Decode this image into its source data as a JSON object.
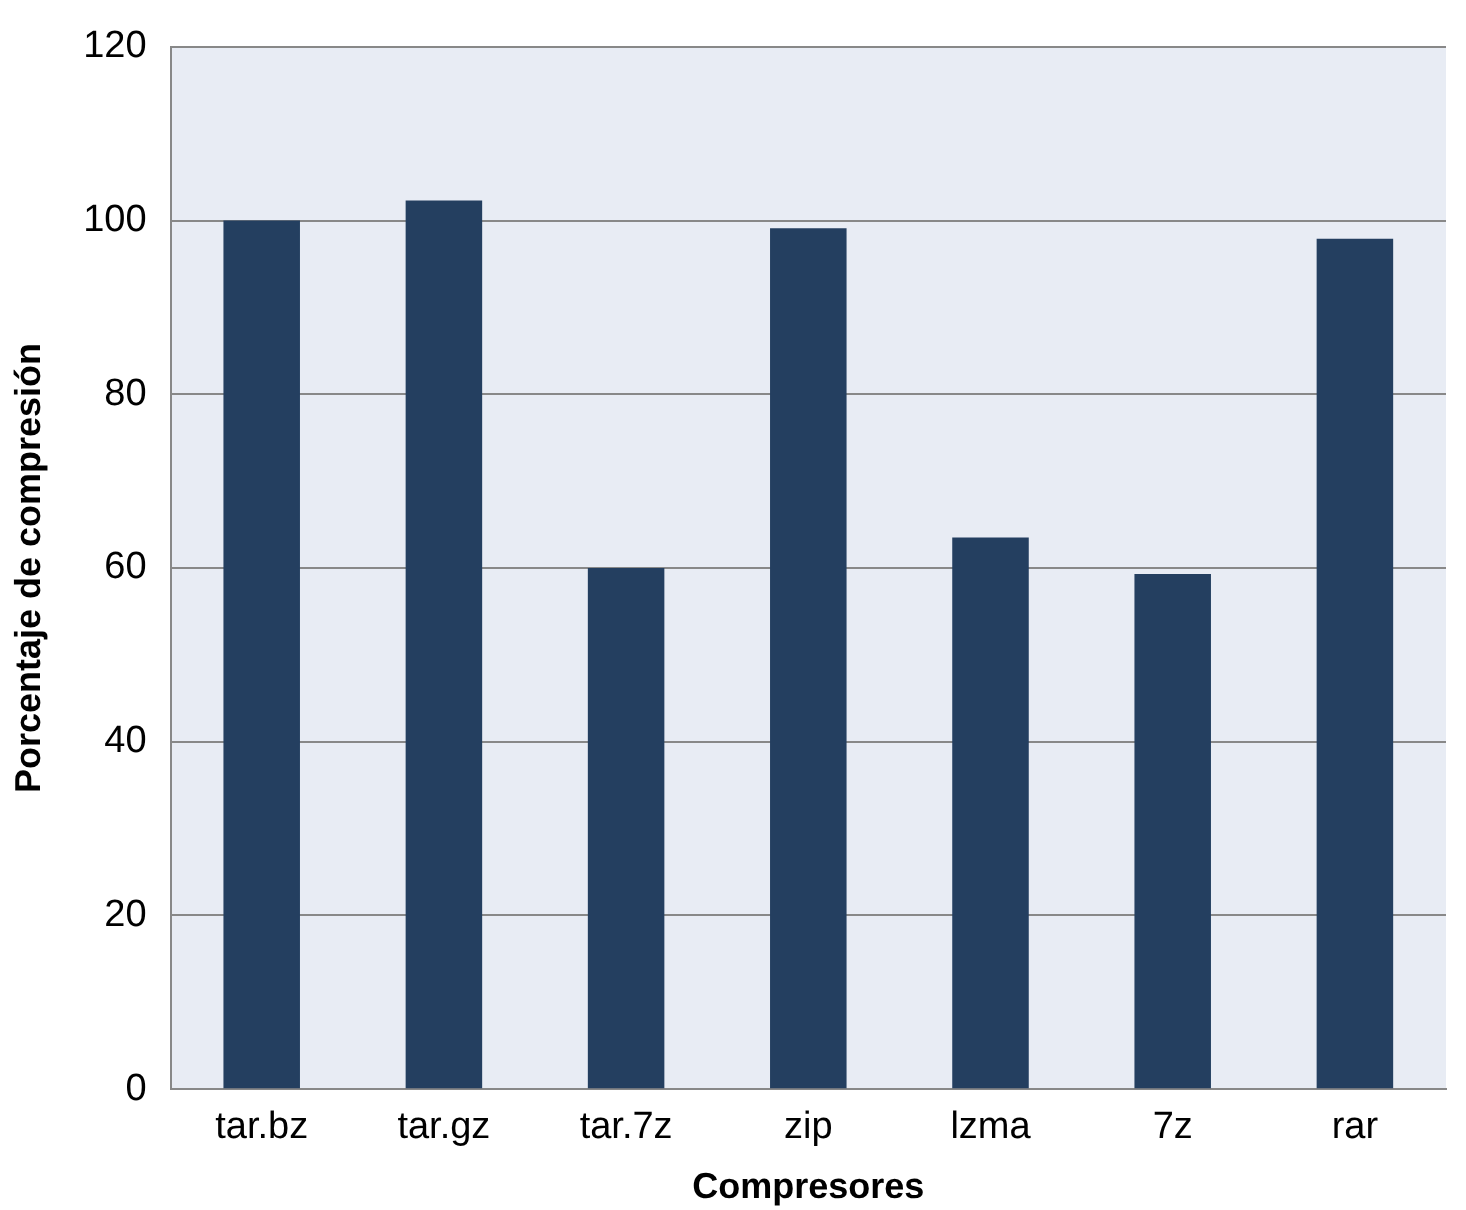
{
  "chart_data": {
    "type": "bar",
    "xlabel": "Compresores",
    "ylabel": "Porcentaje de compresión",
    "categories": [
      "tar.bz",
      "tar.gz",
      "tar.7z",
      "zip",
      "lzma",
      "7z",
      "rar"
    ],
    "values": [
      100,
      102.3,
      60,
      99.1,
      63.5,
      59.3,
      97.9
    ],
    "color": "#243f60",
    "ylim": [
      0,
      120
    ],
    "yticks": [
      0,
      20,
      40,
      60,
      80,
      100,
      120
    ],
    "grid": "y",
    "legend": false
  }
}
